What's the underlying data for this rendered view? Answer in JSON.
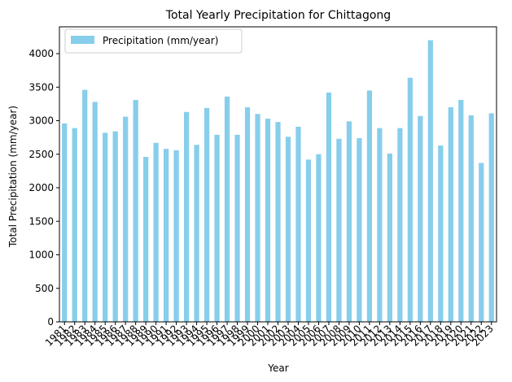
{
  "chart_data": {
    "type": "bar",
    "title": "Total Yearly Precipitation for Chittagong",
    "xlabel": "Year",
    "ylabel": "Total Precipitation (mm/year)",
    "ylim": [
      0,
      4400
    ],
    "yticks": [
      0,
      500,
      1000,
      1500,
      2000,
      2500,
      3000,
      3500,
      4000
    ],
    "grid": false,
    "legend_position": "top-left",
    "bar_color": "#87ceeb",
    "categories": [
      "1981",
      "1982",
      "1983",
      "1984",
      "1985",
      "1986",
      "1987",
      "1988",
      "1989",
      "1990",
      "1991",
      "1992",
      "1993",
      "1994",
      "1995",
      "1996",
      "1997",
      "1998",
      "1999",
      "2000",
      "2001",
      "2002",
      "2003",
      "2004",
      "2005",
      "2006",
      "2007",
      "2008",
      "2009",
      "2010",
      "2011",
      "2012",
      "2013",
      "2014",
      "2015",
      "2016",
      "2017",
      "2018",
      "2019",
      "2020",
      "2021",
      "2022",
      "2023"
    ],
    "series": [
      {
        "name": "Precipitation (mm/year)",
        "values": [
          2960,
          2890,
          3460,
          3280,
          2820,
          2840,
          3060,
          3310,
          2460,
          2670,
          2580,
          2560,
          3130,
          2640,
          3190,
          2790,
          3360,
          2790,
          3200,
          3100,
          3030,
          2980,
          2760,
          2910,
          2420,
          2500,
          3420,
          2730,
          2990,
          2740,
          3450,
          2890,
          2510,
          2890,
          3640,
          3070,
          4200,
          2630,
          3200,
          3310,
          3080,
          2370,
          3110
        ]
      }
    ]
  }
}
